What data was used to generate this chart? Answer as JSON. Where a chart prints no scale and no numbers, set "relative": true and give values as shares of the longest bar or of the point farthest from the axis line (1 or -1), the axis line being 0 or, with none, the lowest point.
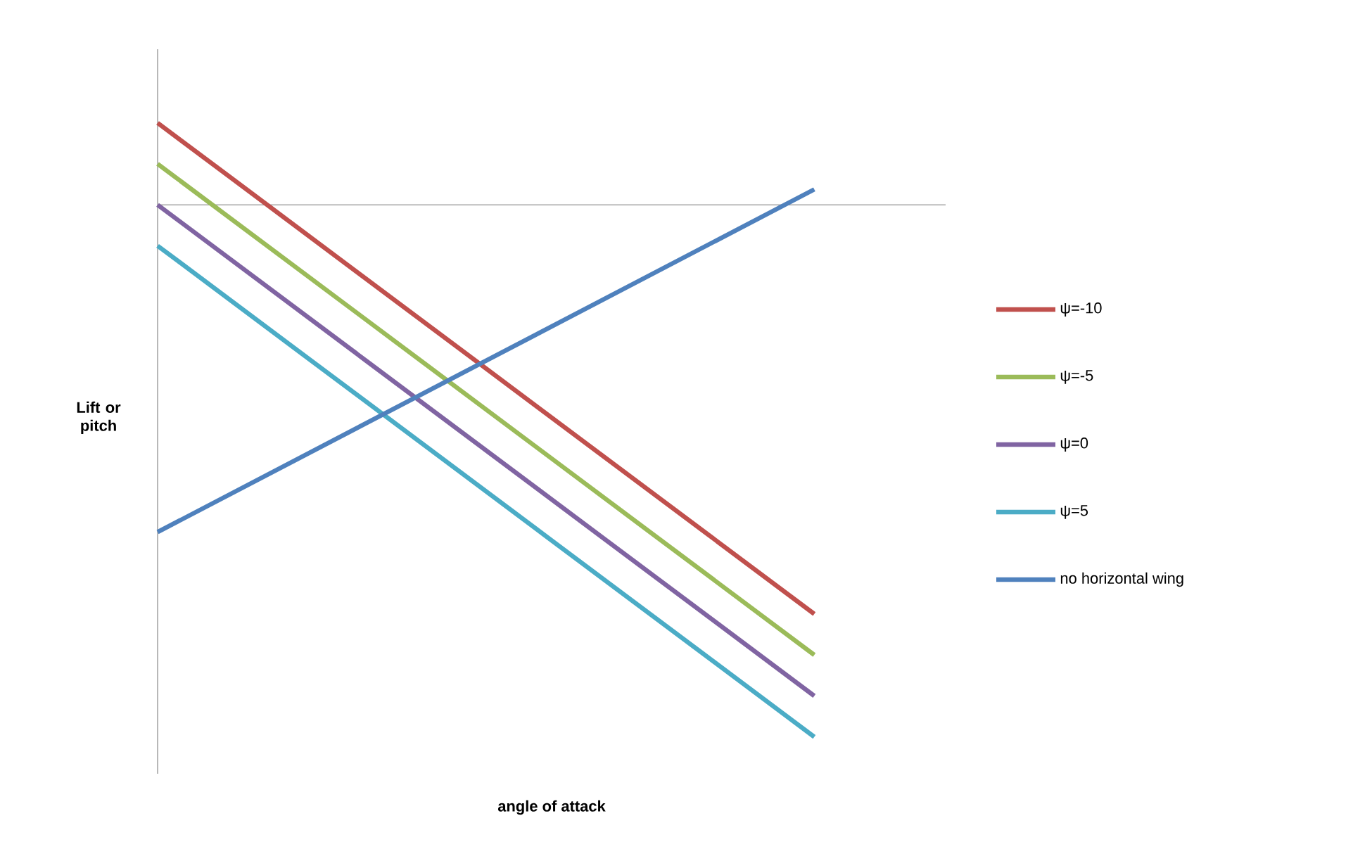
{
  "chart_data": {
    "type": "line",
    "relative": true,
    "xlabel": "angle of attack",
    "ylabel": "Lift or pitch",
    "categories": [
      null,
      null
    ],
    "legend": "right",
    "marker": "none",
    "line_style": "solid",
    "series": [
      {
        "name": "ψ=-10",
        "color": "#c0504d",
        "values": [
          0.154,
          -0.769
        ]
      },
      {
        "name": "ψ=-5",
        "color": "#9bbb59",
        "values": [
          0.077,
          -0.846
        ]
      },
      {
        "name": "ψ=0",
        "color": "#8064a2",
        "values": [
          0,
          -0.923
        ]
      },
      {
        "name": "ψ=5",
        "color": "#4bacc6",
        "values": [
          -0.077,
          -1
        ]
      },
      {
        "name": "no horizontal wing",
        "color": "#4f81bd",
        "values": [
          -0.615,
          0.029
        ]
      }
    ]
  }
}
